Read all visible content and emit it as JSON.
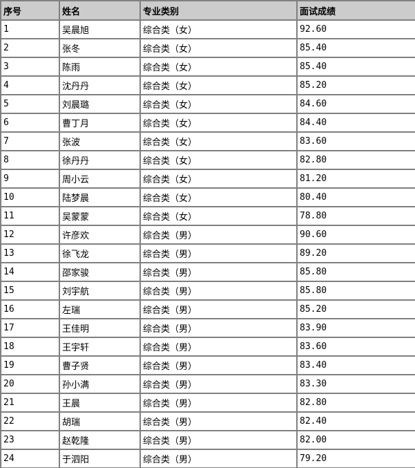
{
  "colors": {
    "header_bg": "#cccccc",
    "border": "#808080",
    "text": "#000000",
    "row_bg": "#ffffff"
  },
  "table": {
    "columns": [
      "序号",
      "姓名",
      "专业类别",
      "面试成绩"
    ],
    "rows": [
      {
        "no": "1",
        "name": "吴晨旭",
        "category": "综合类（女）",
        "score": "92.60"
      },
      {
        "no": "2",
        "name": "张冬",
        "category": "综合类（女）",
        "score": "85.40"
      },
      {
        "no": "3",
        "name": "陈雨",
        "category": "综合类（女）",
        "score": "85.40"
      },
      {
        "no": "4",
        "name": "沈丹丹",
        "category": "综合类（女）",
        "score": "85.20"
      },
      {
        "no": "5",
        "name": "刘晨璐",
        "category": "综合类（女）",
        "score": "84.60"
      },
      {
        "no": "6",
        "name": "曹丁月",
        "category": "综合类（女）",
        "score": "84.40"
      },
      {
        "no": "7",
        "name": "张波",
        "category": "综合类（女）",
        "score": "83.60"
      },
      {
        "no": "8",
        "name": "徐丹丹",
        "category": "综合类（女）",
        "score": "82.80"
      },
      {
        "no": "9",
        "name": "周小云",
        "category": "综合类（女）",
        "score": "81.20"
      },
      {
        "no": "10",
        "name": "陆梦晨",
        "category": "综合类（女）",
        "score": "80.40"
      },
      {
        "no": "11",
        "name": "吴蒙蒙",
        "category": "综合类（女）",
        "score": "78.80"
      },
      {
        "no": "12",
        "name": "许彦欢",
        "category": "综合类（男）",
        "score": "90.60"
      },
      {
        "no": "13",
        "name": "徐飞龙",
        "category": "综合类（男）",
        "score": "89.20"
      },
      {
        "no": "14",
        "name": "邵家骏",
        "category": "综合类（男）",
        "score": "85.80"
      },
      {
        "no": "15",
        "name": "刘宇航",
        "category": "综合类（男）",
        "score": "85.80"
      },
      {
        "no": "16",
        "name": "左瑞",
        "category": "综合类（男）",
        "score": "85.20"
      },
      {
        "no": "17",
        "name": "王佳明",
        "category": "综合类（男）",
        "score": "83.90"
      },
      {
        "no": "18",
        "name": "王宇轩",
        "category": "综合类（男）",
        "score": "83.60"
      },
      {
        "no": "19",
        "name": "曹子贤",
        "category": "综合类（男）",
        "score": "83.40"
      },
      {
        "no": "20",
        "name": "孙小满",
        "category": "综合类（男）",
        "score": "83.30"
      },
      {
        "no": "21",
        "name": "王晨",
        "category": "综合类（男）",
        "score": "82.80"
      },
      {
        "no": "22",
        "name": "胡瑞",
        "category": "综合类（男）",
        "score": "82.40"
      },
      {
        "no": "23",
        "name": "赵乾隆",
        "category": "综合类（男）",
        "score": "82.00"
      },
      {
        "no": "24",
        "name": "于泗阳",
        "category": "综合类（男）",
        "score": "79.20"
      }
    ]
  }
}
